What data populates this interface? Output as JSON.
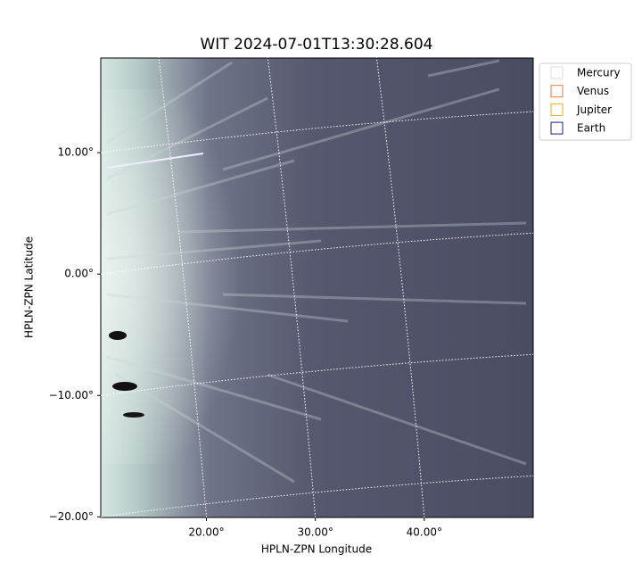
{
  "chart_data": {
    "type": "image",
    "title": "WIT 2024-07-01T13:30:28.604",
    "xlabel": "HPLN-ZPN Longitude",
    "ylabel": "HPLN-ZPN Latitude",
    "xlim": [
      10.3,
      50
    ],
    "ylim": [
      -20.05,
      17.8
    ],
    "xticks": [
      {
        "value": 20,
        "label": "20.00°"
      },
      {
        "value": 30,
        "label": "30.00°"
      },
      {
        "value": 40,
        "label": "40.00°"
      }
    ],
    "yticks": [
      {
        "value": 10,
        "label": "10.00°"
      },
      {
        "value": 0,
        "label": "0.00°"
      },
      {
        "value": -10,
        "label": "−10.00°"
      },
      {
        "value": -20,
        "label": "−20.00°"
      }
    ],
    "grid": true,
    "legend": [
      {
        "name": "Mercury",
        "color": "#dcdcdc"
      },
      {
        "name": "Venus",
        "color": "#e07b39"
      },
      {
        "name": "Jupiter",
        "color": "#e0b020"
      },
      {
        "name": "Earth",
        "color": "#1c1c78"
      }
    ],
    "legend_position": "upper right"
  }
}
